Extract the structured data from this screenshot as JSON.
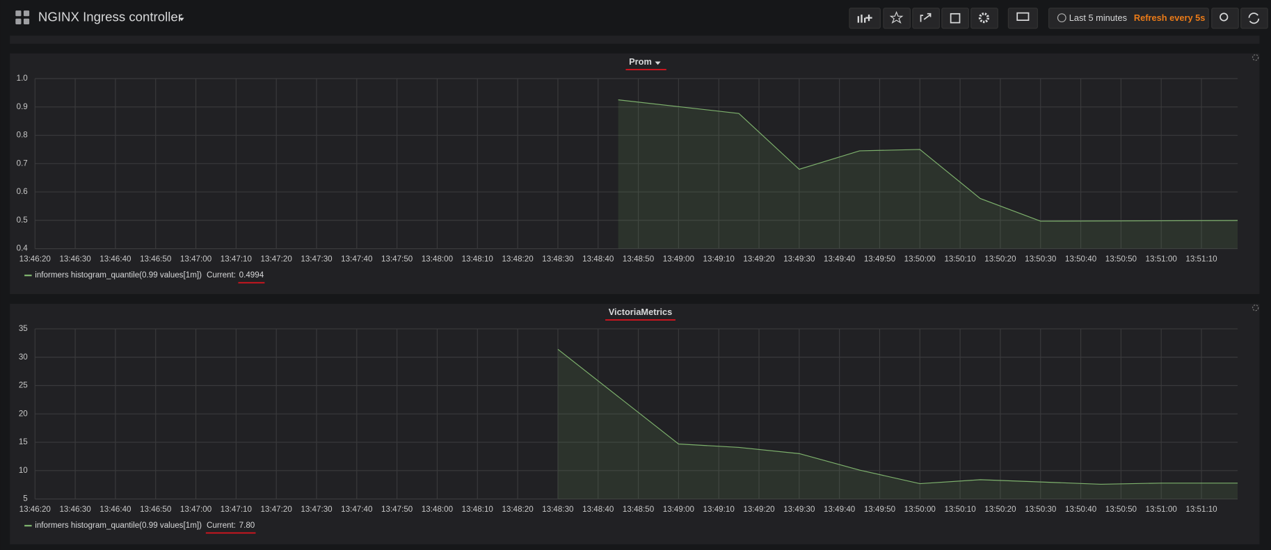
{
  "header": {
    "title": "NGINX Ingress controller",
    "time_range": "Last 5 minutes",
    "refresh": "Refresh every 5s"
  },
  "chart_data": [
    {
      "type": "line",
      "title": "Prom",
      "xlim": [
        "13:46:20",
        "13:51:19"
      ],
      "xticks": [
        "13:46:20",
        "13:46:30",
        "13:46:40",
        "13:46:50",
        "13:47:00",
        "13:47:10",
        "13:47:20",
        "13:47:30",
        "13:47:40",
        "13:47:50",
        "13:48:00",
        "13:48:10",
        "13:48:20",
        "13:48:30",
        "13:48:40",
        "13:48:50",
        "13:49:00",
        "13:49:10",
        "13:49:20",
        "13:49:30",
        "13:49:40",
        "13:49:50",
        "13:50:00",
        "13:50:10",
        "13:50:20",
        "13:50:30",
        "13:50:40",
        "13:50:50",
        "13:51:00",
        "13:51:10"
      ],
      "ylim": [
        0.4,
        1
      ],
      "yticks": [
        0.4,
        0.5,
        0.6,
        0.7,
        0.8,
        0.9,
        {
          "value": 1,
          "label": "1.0"
        }
      ],
      "grid": true,
      "x": [
        "13:48:45",
        "13:49:15",
        "13:49:30",
        "13:49:45",
        "13:50:00",
        "13:50:15",
        "13:50:30",
        "13:51:19"
      ],
      "legend_current_label": "Current:",
      "series": [
        {
          "name": "informers histogram_quantile(0.99 values[1m])",
          "color": "#7eb26d",
          "values": [
            0.925,
            0.877,
            0.68,
            0.745,
            0.75,
            0.577,
            0.497,
            0.4994
          ],
          "current": 0.4994
        }
      ]
    },
    {
      "type": "line",
      "title": "VictoriaMetrics",
      "xlim": [
        "13:46:20",
        "13:51:19"
      ],
      "xticks": [
        "13:46:20",
        "13:46:30",
        "13:46:40",
        "13:46:50",
        "13:47:00",
        "13:47:10",
        "13:47:20",
        "13:47:30",
        "13:47:40",
        "13:47:50",
        "13:48:00",
        "13:48:10",
        "13:48:20",
        "13:48:30",
        "13:48:40",
        "13:48:50",
        "13:49:00",
        "13:49:10",
        "13:49:20",
        "13:49:30",
        "13:49:40",
        "13:49:50",
        "13:50:00",
        "13:50:10",
        "13:50:20",
        "13:50:30",
        "13:50:40",
        "13:50:50",
        "13:51:00",
        "13:51:10"
      ],
      "ylim": [
        5,
        35
      ],
      "yticks": [
        5,
        10,
        15,
        20,
        25,
        30,
        35
      ],
      "grid": true,
      "x": [
        "13:48:30",
        "13:49:00",
        "13:49:15",
        "13:49:30",
        "13:49:45",
        "13:50:00",
        "13:50:15",
        "13:50:30",
        "13:50:45",
        "13:51:00",
        "13:51:19"
      ],
      "legend_current_label": "Current:",
      "series": [
        {
          "name": "informers histogram_quantile(0.99 values[1m])",
          "color": "#7eb26d",
          "values": [
            31.4,
            14.7,
            14.1,
            13,
            10.1,
            7.7,
            8.4,
            8,
            7.6,
            7.8,
            7.8
          ],
          "current": {
            "value": 7.8,
            "label": "7.80"
          }
        }
      ]
    }
  ]
}
